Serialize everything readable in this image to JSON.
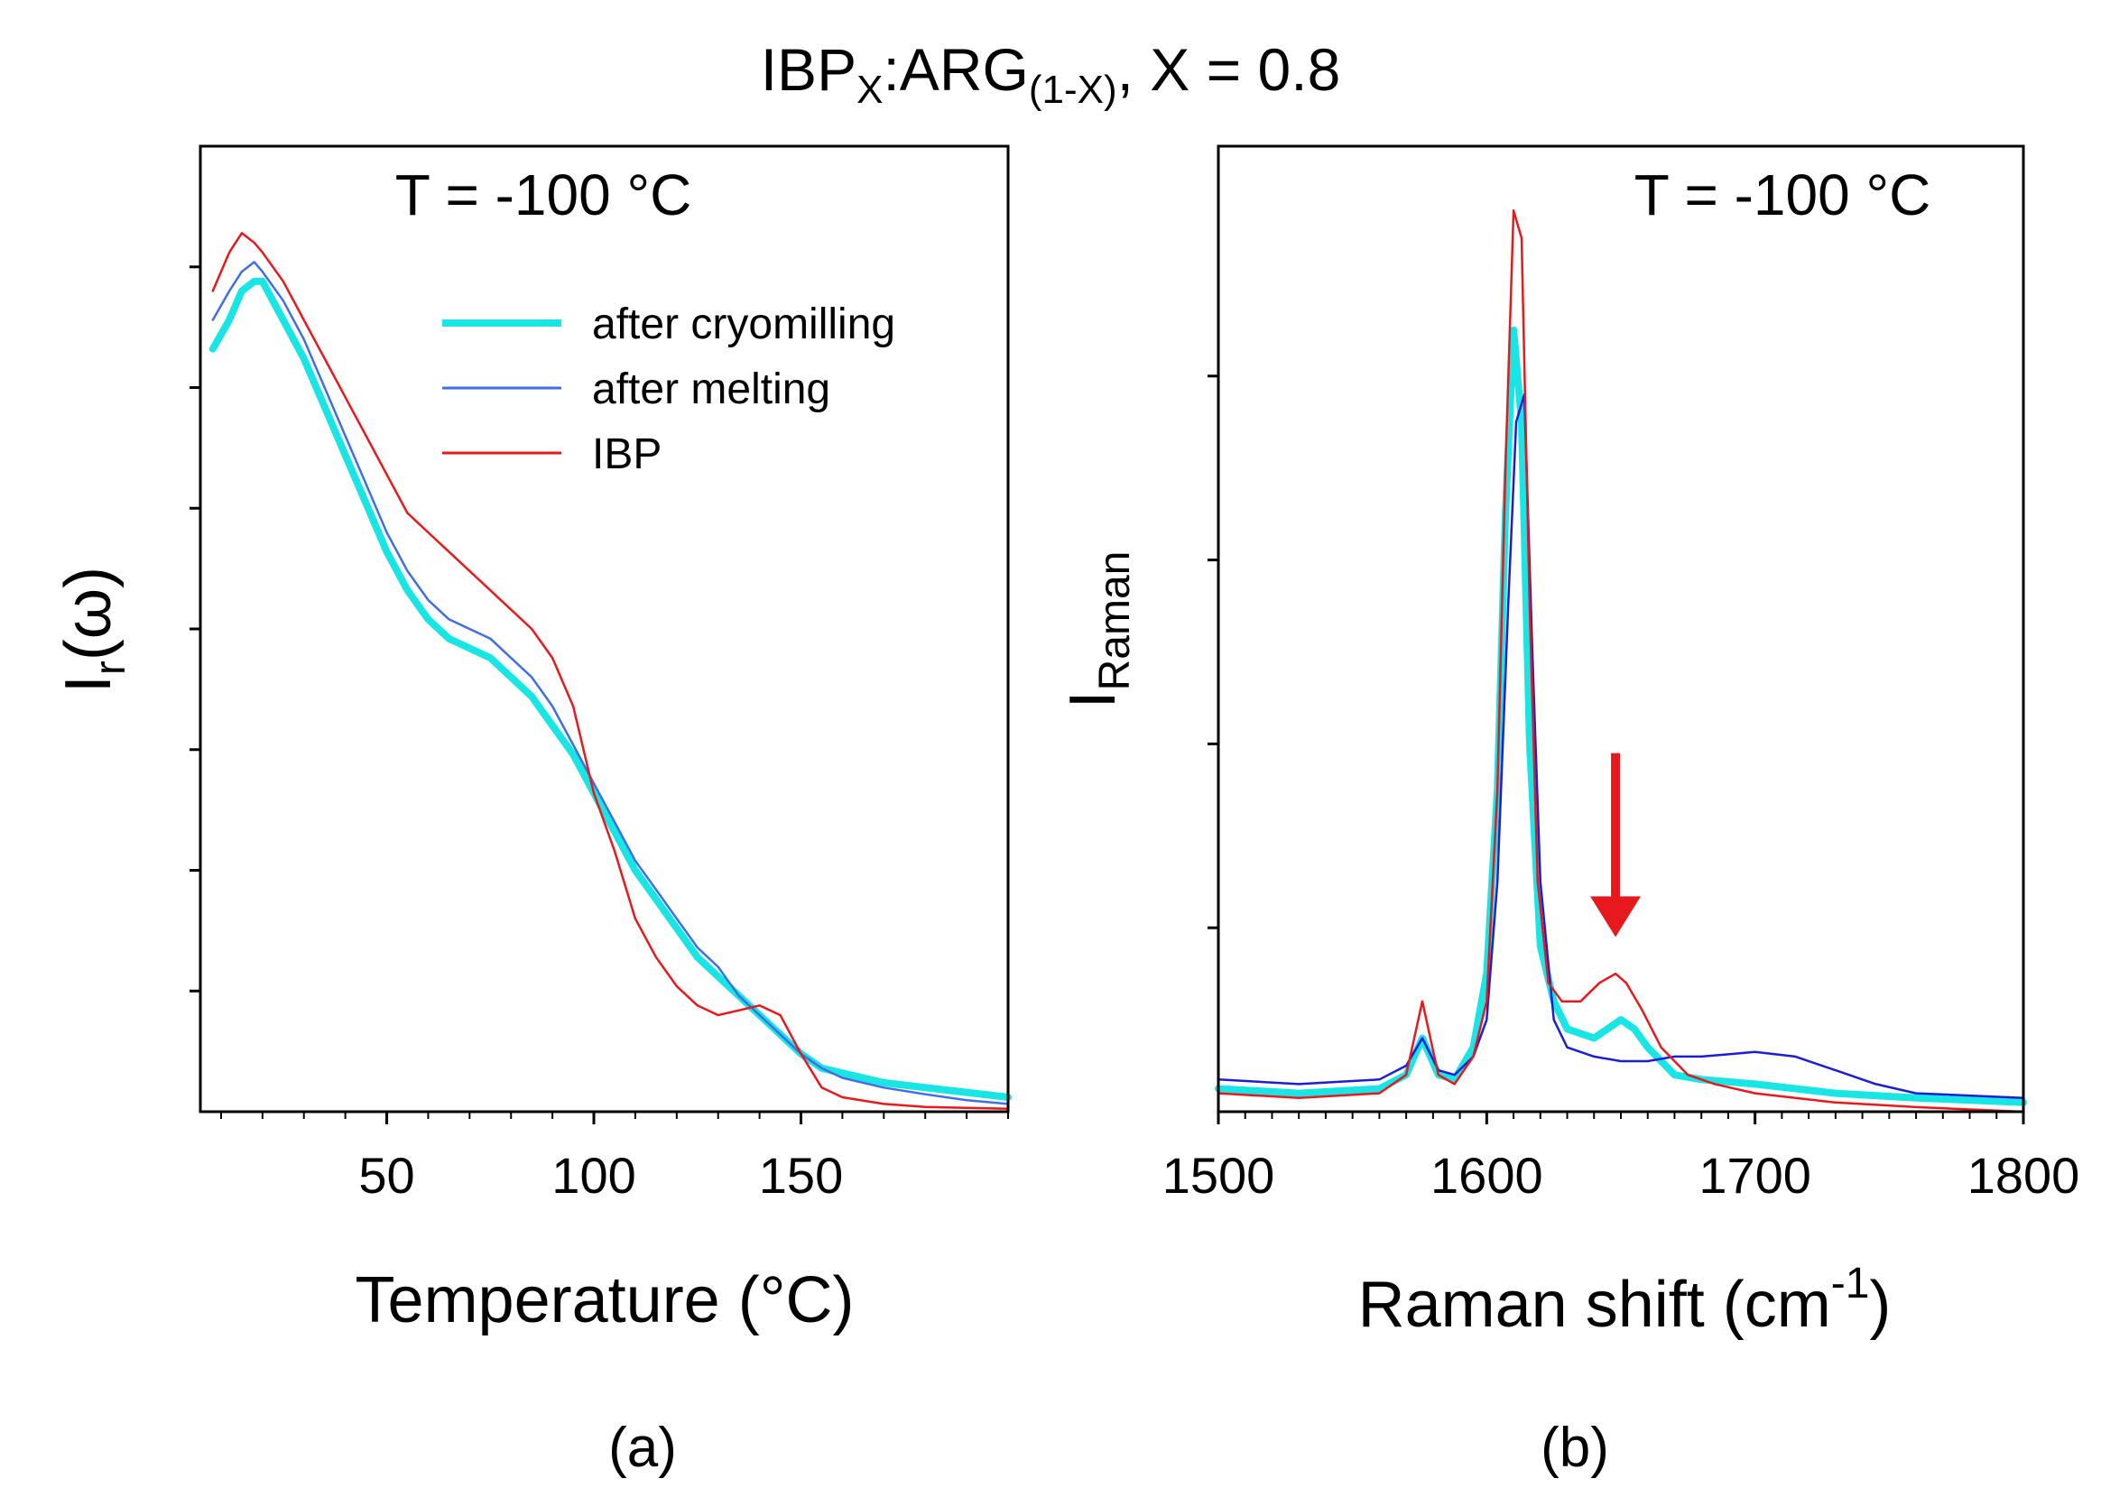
{
  "figure": {
    "title_base": "IBP",
    "title_sub1": "X",
    "title_mid": ":ARG",
    "title_sub2": "(1-X)",
    "title_tail": ", X = 0.8"
  },
  "chart_data": [
    {
      "type": "line",
      "panel_label": "(a)",
      "annotation": "T = -100 °C",
      "xlabel": "Temperature (°C)",
      "ylabel_main": "I",
      "ylabel_sub": "r",
      "ylabel_tail": "(ω)",
      "xlim": [
        5,
        200
      ],
      "ylim": [
        0,
        1
      ],
      "xticks": [
        50,
        100,
        150
      ],
      "xtick_labels": [
        "50",
        "100",
        "150"
      ],
      "yticks": [
        0.125,
        0.25,
        0.375,
        0.5,
        0.625,
        0.75,
        0.875
      ],
      "legend": "top-right",
      "series": [
        {
          "name": "after cryomilling",
          "color": "#19e5e5",
          "x": [
            8,
            12,
            15,
            18,
            20,
            25,
            30,
            35,
            40,
            45,
            50,
            55,
            60,
            65,
            70,
            75,
            80,
            85,
            90,
            95,
            100,
            105,
            110,
            115,
            120,
            125,
            130,
            135,
            140,
            145,
            150,
            155,
            160,
            170,
            180,
            190,
            200
          ],
          "y": [
            0.79,
            0.82,
            0.85,
            0.86,
            0.86,
            0.82,
            0.78,
            0.73,
            0.68,
            0.63,
            0.58,
            0.54,
            0.51,
            0.49,
            0.48,
            0.47,
            0.45,
            0.43,
            0.4,
            0.37,
            0.33,
            0.29,
            0.25,
            0.22,
            0.19,
            0.16,
            0.14,
            0.12,
            0.1,
            0.08,
            0.06,
            0.045,
            0.04,
            0.03,
            0.025,
            0.02,
            0.015
          ]
        },
        {
          "name": "after melting",
          "color": "#3f6fe3",
          "x": [
            8,
            12,
            15,
            18,
            20,
            25,
            30,
            35,
            40,
            45,
            50,
            55,
            60,
            65,
            70,
            75,
            80,
            85,
            90,
            95,
            100,
            105,
            110,
            115,
            120,
            125,
            130,
            135,
            140,
            145,
            150,
            155,
            160,
            170,
            180,
            190,
            200
          ],
          "y": [
            0.82,
            0.85,
            0.87,
            0.88,
            0.87,
            0.84,
            0.8,
            0.75,
            0.7,
            0.65,
            0.6,
            0.56,
            0.53,
            0.51,
            0.5,
            0.49,
            0.47,
            0.45,
            0.42,
            0.38,
            0.34,
            0.3,
            0.26,
            0.23,
            0.2,
            0.17,
            0.15,
            0.12,
            0.1,
            0.08,
            0.06,
            0.045,
            0.035,
            0.025,
            0.018,
            0.012,
            0.008
          ]
        },
        {
          "name": "IBP",
          "color": "#e8191c",
          "x": [
            8,
            12,
            15,
            18,
            20,
            25,
            30,
            35,
            40,
            45,
            50,
            55,
            60,
            65,
            70,
            75,
            80,
            85,
            90,
            95,
            100,
            105,
            110,
            115,
            120,
            125,
            130,
            135,
            140,
            145,
            150,
            155,
            160,
            170,
            180,
            190,
            200
          ],
          "y": [
            0.85,
            0.89,
            0.91,
            0.9,
            0.89,
            0.86,
            0.82,
            0.78,
            0.74,
            0.7,
            0.66,
            0.62,
            0.6,
            0.58,
            0.56,
            0.54,
            0.52,
            0.5,
            0.47,
            0.42,
            0.33,
            0.27,
            0.2,
            0.16,
            0.13,
            0.11,
            0.1,
            0.105,
            0.11,
            0.1,
            0.06,
            0.025,
            0.015,
            0.008,
            0.005,
            0.004,
            0.003
          ]
        }
      ]
    },
    {
      "type": "line",
      "panel_label": "(b)",
      "annotation": "T = -100 °C",
      "xlabel_main": "Raman shift (cm",
      "xlabel_sup": "-1",
      "xlabel_tail": ")",
      "ylabel_main": "I",
      "ylabel_sub": "Raman",
      "xlim": [
        1500,
        1800
      ],
      "ylim": [
        0,
        1.05
      ],
      "xticks": [
        1500,
        1600,
        1700,
        1800
      ],
      "xtick_labels": [
        "1500",
        "1600",
        "1700",
        "1800"
      ],
      "yticks": [
        0.2,
        0.4,
        0.6,
        0.8
      ],
      "series": [
        {
          "name": "after cryomilling",
          "color": "#19e5e5",
          "x": [
            1500,
            1530,
            1560,
            1570,
            1576,
            1582,
            1588,
            1595,
            1600,
            1604,
            1607,
            1610,
            1613,
            1616,
            1620,
            1625,
            1630,
            1640,
            1645,
            1650,
            1655,
            1660,
            1670,
            1680,
            1700,
            1730,
            1760,
            1800
          ],
          "y": [
            0.025,
            0.02,
            0.025,
            0.04,
            0.08,
            0.04,
            0.035,
            0.07,
            0.15,
            0.35,
            0.65,
            0.85,
            0.75,
            0.4,
            0.18,
            0.12,
            0.09,
            0.08,
            0.09,
            0.1,
            0.09,
            0.07,
            0.04,
            0.035,
            0.03,
            0.02,
            0.015,
            0.01
          ]
        },
        {
          "name": "after melting",
          "color": "#1c1ed6",
          "x": [
            1500,
            1530,
            1560,
            1570,
            1576,
            1582,
            1588,
            1595,
            1600,
            1604,
            1608,
            1611,
            1614,
            1617,
            1620,
            1625,
            1630,
            1640,
            1650,
            1660,
            1670,
            1680,
            1700,
            1715,
            1730,
            1745,
            1760,
            1800
          ],
          "y": [
            0.035,
            0.03,
            0.035,
            0.05,
            0.08,
            0.045,
            0.04,
            0.06,
            0.1,
            0.25,
            0.55,
            0.75,
            0.78,
            0.5,
            0.25,
            0.1,
            0.07,
            0.06,
            0.055,
            0.055,
            0.06,
            0.06,
            0.065,
            0.06,
            0.045,
            0.03,
            0.02,
            0.015
          ]
        },
        {
          "name": "IBP",
          "color": "#e8191c",
          "x": [
            1500,
            1530,
            1560,
            1570,
            1576,
            1582,
            1588,
            1595,
            1600,
            1604,
            1607,
            1610,
            1613,
            1616,
            1619,
            1623,
            1628,
            1635,
            1642,
            1648,
            1652,
            1658,
            1665,
            1675,
            1685,
            1700,
            1730,
            1760,
            1800
          ],
          "y": [
            0.02,
            0.015,
            0.02,
            0.04,
            0.12,
            0.04,
            0.03,
            0.06,
            0.12,
            0.35,
            0.7,
            0.98,
            0.95,
            0.55,
            0.25,
            0.14,
            0.12,
            0.12,
            0.14,
            0.15,
            0.14,
            0.11,
            0.07,
            0.04,
            0.03,
            0.02,
            0.01,
            0.005,
            0.0
          ]
        }
      ],
      "arrow": {
        "x": 1648,
        "y_from": 0.39,
        "y_to": 0.19,
        "color": "#e8191c"
      }
    }
  ]
}
